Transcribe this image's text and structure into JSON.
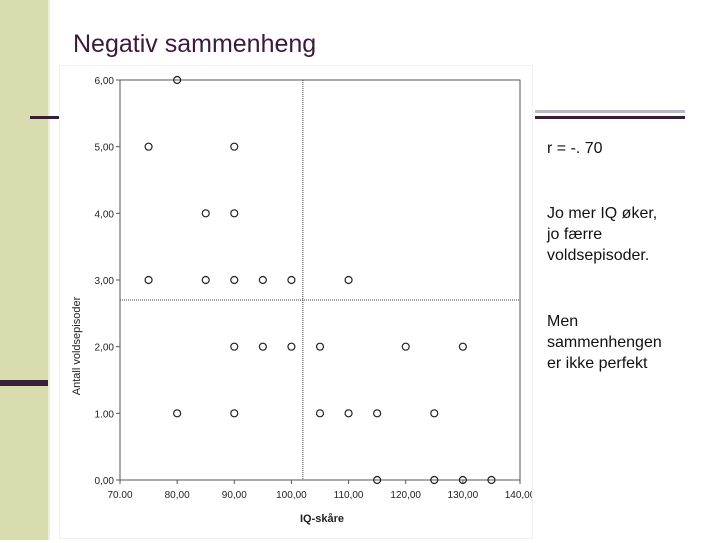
{
  "slide": {
    "title": "Negativ sammenheng",
    "notes": [
      "r = -. 70",
      "Jo mer IQ øker,\njo færre\nvoldsepisoder.",
      "Men\nsammenhengen\ner ikke perfekt"
    ],
    "colors": {
      "title": "#3b1a3b",
      "band": "#d8dcae",
      "accent_rule": "#3b1a3b"
    }
  },
  "chart_data": {
    "type": "scatter",
    "xlabel": "IQ-skåre",
    "ylabel": "Antall voldsepisoder",
    "xlim": [
      70,
      140
    ],
    "ylim": [
      0,
      6
    ],
    "xticks": [
      70,
      80,
      90,
      100,
      110,
      120,
      130,
      140
    ],
    "yticks": [
      0,
      1,
      2,
      3,
      4,
      5,
      6
    ],
    "xtick_labels": [
      "70.00",
      "80,00",
      "90,00",
      "100,00",
      "110,00",
      "120,00",
      "130,00",
      "140,00"
    ],
    "ytick_labels": [
      "0,00",
      "1.00",
      "2,00",
      "3,00",
      "4,00",
      "5,00",
      "6,00"
    ],
    "reference_lines": {
      "x": 102,
      "y": 2.7
    },
    "grid": false,
    "points": [
      {
        "x": 80,
        "y": 6
      },
      {
        "x": 75,
        "y": 5
      },
      {
        "x": 90,
        "y": 5
      },
      {
        "x": 85,
        "y": 4
      },
      {
        "x": 90,
        "y": 4
      },
      {
        "x": 75,
        "y": 3
      },
      {
        "x": 85,
        "y": 3
      },
      {
        "x": 90,
        "y": 3
      },
      {
        "x": 95,
        "y": 3
      },
      {
        "x": 100,
        "y": 3
      },
      {
        "x": 110,
        "y": 3
      },
      {
        "x": 90,
        "y": 2
      },
      {
        "x": 95,
        "y": 2
      },
      {
        "x": 100,
        "y": 2
      },
      {
        "x": 105,
        "y": 2
      },
      {
        "x": 120,
        "y": 2
      },
      {
        "x": 130,
        "y": 2
      },
      {
        "x": 80,
        "y": 1
      },
      {
        "x": 90,
        "y": 1
      },
      {
        "x": 105,
        "y": 1
      },
      {
        "x": 110,
        "y": 1
      },
      {
        "x": 115,
        "y": 1
      },
      {
        "x": 125,
        "y": 1
      },
      {
        "x": 115,
        "y": 0
      },
      {
        "x": 125,
        "y": 0
      },
      {
        "x": 130,
        "y": 0
      },
      {
        "x": 135,
        "y": 0
      }
    ]
  }
}
